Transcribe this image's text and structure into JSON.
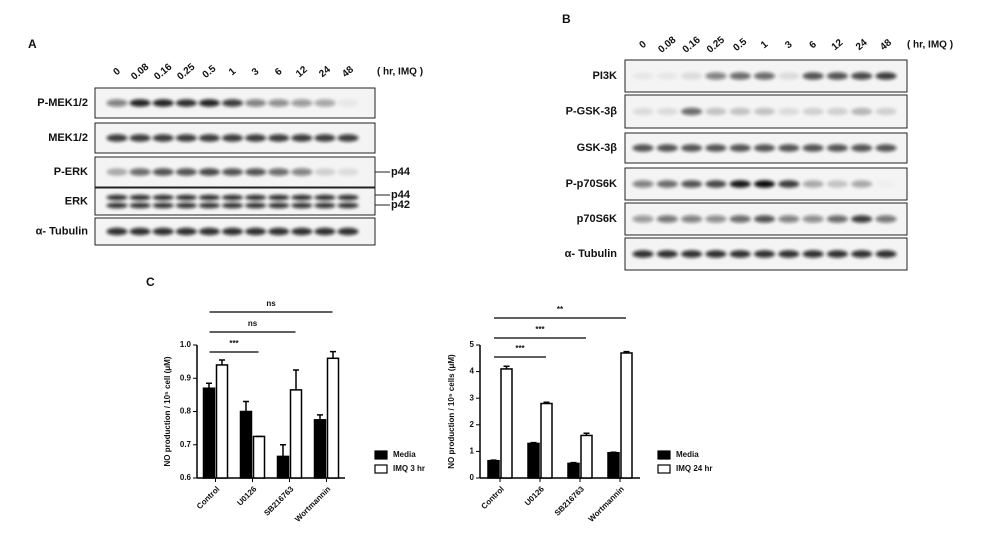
{
  "panel_a": {
    "label": "A",
    "times": [
      "0",
      "0.08",
      "0.16",
      "0.25",
      "0.5",
      "1",
      "3",
      "6",
      "12",
      "24",
      "48"
    ],
    "unit": "( hr, IMQ )",
    "rows": [
      "P-MEK1/2",
      "MEK1/2",
      "P-ERK",
      "ERK",
      "α- Tubulin"
    ],
    "markers": [
      "p44",
      "p44",
      "p42"
    ]
  },
  "panel_b": {
    "label": "B",
    "times": [
      "0",
      "0.08",
      "0.16",
      "0.25",
      "0.5",
      "1",
      "3",
      "6",
      "12",
      "24",
      "48"
    ],
    "unit": "( hr, IMQ )",
    "rows": [
      "PI3K",
      "P-GSK-3β",
      "GSK-3β",
      "P-p70S6K",
      "p70S6K",
      "α- Tubulin"
    ]
  },
  "panel_c": {
    "label": "C"
  },
  "chart_data": [
    {
      "type": "bar",
      "y_label": "NO production / 10⁵ cell (μM)",
      "categories": [
        "Control",
        "U0126",
        "SB216763",
        "Wortmannin"
      ],
      "series": [
        {
          "name": "Media",
          "color": "#000000",
          "values": [
            0.87,
            0.8,
            0.665,
            0.775
          ],
          "errors": [
            0.015,
            0.03,
            0.035,
            0.015
          ]
        },
        {
          "name": "IMQ 3 hr",
          "color": "#ffffff",
          "values": [
            0.94,
            0.725,
            0.865,
            0.96
          ],
          "errors": [
            0.015,
            0,
            0.06,
            0.02
          ]
        }
      ],
      "ylim": [
        0.6,
        1.0
      ],
      "yticks": [
        0.6,
        0.7,
        0.8,
        0.9,
        {
          "value": 1.0,
          "label": "1.0"
        }
      ],
      "annotations": [
        "***",
        "ns",
        "ns"
      ]
    },
    {
      "type": "bar",
      "y_label": "NO production / 10⁵ cells (μM)",
      "categories": [
        "Control",
        "U0126",
        "SB216763",
        "Wortmannin"
      ],
      "series": [
        {
          "name": "Media",
          "color": "#000000",
          "values": [
            0.65,
            1.3,
            0.55,
            0.95
          ],
          "errors": [
            0.02,
            0.03,
            0.03,
            0.02
          ]
        },
        {
          "name": "IMQ 24 hr",
          "color": "#ffffff",
          "values": [
            4.1,
            2.8,
            1.6,
            4.7
          ],
          "errors": [
            0.1,
            0.05,
            0.08,
            0.05
          ]
        }
      ],
      "ylim": [
        0,
        5
      ],
      "yticks": [
        0,
        1,
        2,
        3,
        4,
        5
      ],
      "annotations": [
        "***",
        "***",
        "**"
      ]
    }
  ]
}
